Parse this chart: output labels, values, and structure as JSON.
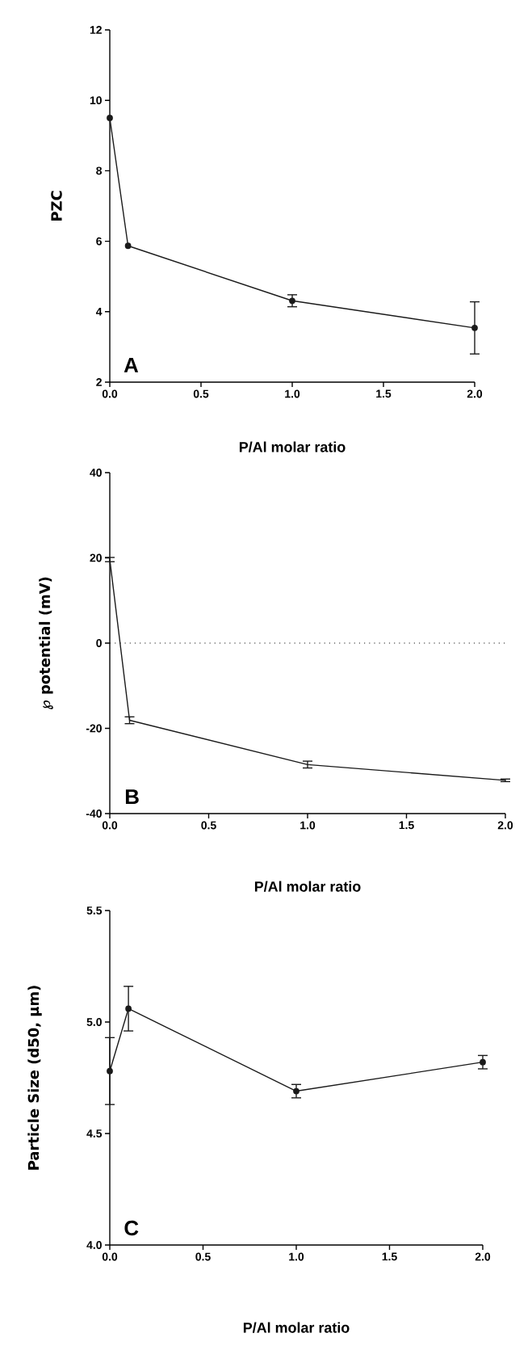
{
  "chart_data": [
    {
      "type": "line",
      "ylabel": "PZC",
      "xlabel": "P/Al molar ratio",
      "annotations": [
        "A"
      ],
      "marker": "circle",
      "line_style": "solid",
      "x": [
        0,
        0.1,
        1,
        2
      ],
      "series": [
        {
          "color": "#1a1a1a",
          "values": [
            9.5,
            5.87,
            4.31,
            3.54
          ],
          "errors": [
            null,
            null,
            0.17,
            0.74
          ]
        }
      ],
      "xlim": [
        0,
        2
      ],
      "ylim": [
        2,
        12
      ],
      "xticks": [
        {
          "value": 0,
          "label": "0.0"
        },
        {
          "value": 0.5,
          "label": "0.5"
        },
        {
          "value": 1,
          "label": "1.0"
        },
        {
          "value": 1.5,
          "label": "1.5"
        },
        {
          "value": 2,
          "label": "2.0"
        }
      ],
      "yticks": [
        2,
        4,
        6,
        8,
        10,
        12
      ]
    },
    {
      "type": "line",
      "ylabel": "℘ potential (mV)",
      "xlabel": "P/Al molar ratio",
      "annotations": [
        "B"
      ],
      "line_style": "solid",
      "x": [
        0,
        0.1,
        1,
        2
      ],
      "series": [
        {
          "color": "#1a1a1a",
          "values": [
            19.6,
            -18.1,
            -28.5,
            -32.2
          ],
          "errors": [
            0.5,
            0.8,
            0.8,
            0.3
          ]
        }
      ],
      "ref_lines": [
        {
          "axis": "y",
          "value": 0,
          "line_style": "dotted",
          "color": "#1a1a1a"
        }
      ],
      "xlim": [
        0,
        2
      ],
      "ylim": [
        -40,
        40
      ],
      "xticks": [
        {
          "value": 0,
          "label": "0.0"
        },
        {
          "value": 0.5,
          "label": "0.5"
        },
        {
          "value": 1,
          "label": "1.0"
        },
        {
          "value": 1.5,
          "label": "1.5"
        },
        {
          "value": 2,
          "label": "2.0"
        }
      ],
      "yticks": [
        -40,
        -20,
        0,
        20,
        40
      ]
    },
    {
      "type": "line",
      "ylabel": "Particle Size (d50, µm)",
      "xlabel": "P/Al molar ratio",
      "annotations": [
        "C"
      ],
      "marker": "circle",
      "line_style": "solid",
      "x": [
        0,
        0.1,
        1,
        2
      ],
      "series": [
        {
          "color": "#1a1a1a",
          "values": [
            4.78,
            5.06,
            4.69,
            4.82
          ],
          "errors": [
            0.15,
            0.1,
            0.03,
            0.03
          ]
        }
      ],
      "xlim": [
        0,
        2
      ],
      "ylim": [
        4.0,
        5.5
      ],
      "xticks": [
        {
          "value": 0,
          "label": "0.0"
        },
        {
          "value": 0.5,
          "label": "0.5"
        },
        {
          "value": 1,
          "label": "1.0"
        },
        {
          "value": 1.5,
          "label": "1.5"
        },
        {
          "value": 2,
          "label": "2.0"
        }
      ],
      "yticks": [
        {
          "value": 4.0,
          "label": "4.0"
        },
        {
          "value": 4.5,
          "label": "4.5"
        },
        {
          "value": 5.0,
          "label": "5.0"
        },
        {
          "value": 5.5,
          "label": "5.5"
        }
      ]
    }
  ]
}
